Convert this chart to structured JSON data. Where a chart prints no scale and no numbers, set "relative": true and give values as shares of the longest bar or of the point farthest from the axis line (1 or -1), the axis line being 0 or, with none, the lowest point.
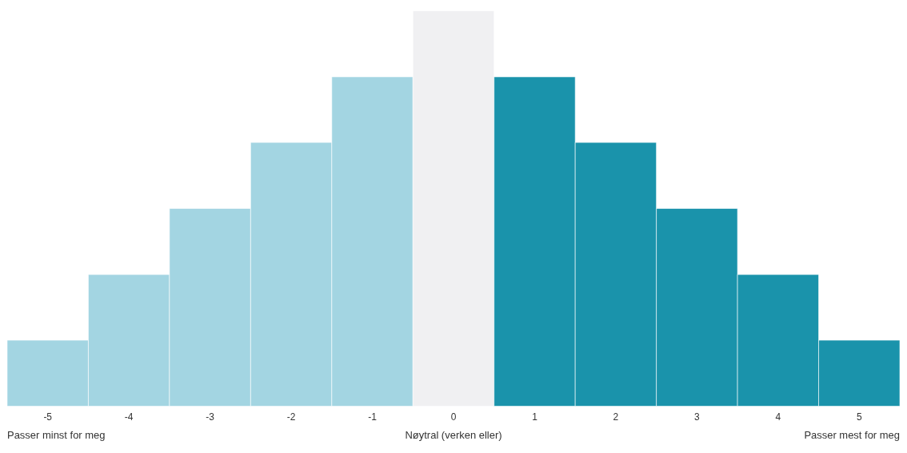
{
  "chart_data": {
    "type": "bar",
    "relative": true,
    "grid": false,
    "categories": [
      "-5",
      "-4",
      "-3",
      "-2",
      "-1",
      "0",
      "1",
      "2",
      "3",
      "4",
      "5"
    ],
    "values": [
      0.167,
      0.333,
      0.5,
      0.667,
      0.833,
      1,
      0.833,
      0.667,
      0.5,
      0.333,
      0.167
    ],
    "colors": [
      "#a3d5e2",
      "#a3d5e2",
      "#a3d5e2",
      "#a3d5e2",
      "#a3d5e2",
      "#f0f0f2",
      "#1a93ab",
      "#1a93ab",
      "#1a93ab",
      "#1a93ab",
      "#1a93ab"
    ],
    "annotations": [
      "Passer minst for meg",
      "Nøytral (verken eller)",
      "Passer mest for meg"
    ]
  }
}
